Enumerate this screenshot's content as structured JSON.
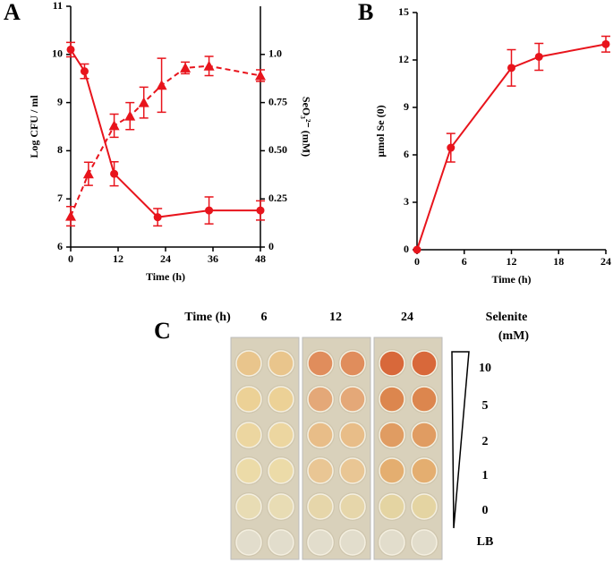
{
  "chart_data": [
    {
      "type": "line",
      "panel": "A",
      "xlabel": "Time (h)",
      "ylabel": "Log CFU / ml",
      "y2label": "SeO₃²⁻ (mM)",
      "xlim": [
        0,
        48
      ],
      "xticks": [
        0,
        12,
        24,
        36,
        48
      ],
      "ylim": [
        6,
        11
      ],
      "yticks": [
        6,
        7,
        8,
        9,
        10,
        11
      ],
      "y2lim": [
        0,
        1.25
      ],
      "y2ticks": [
        0,
        0.25,
        {
          "value": 0.5,
          "label": "0.50"
        },
        0.75,
        {
          "value": 1,
          "label": "1.0"
        }
      ],
      "series": [
        {
          "color": "#e8141c",
          "marker": "circle",
          "dashed": false,
          "axis": "y",
          "x": [
            0,
            3.5,
            11,
            22,
            35,
            48
          ],
          "values": [
            10.1,
            9.65,
            7.52,
            6.62,
            6.76,
            6.76
          ],
          "errors": [
            0.15,
            0.15,
            0.25,
            0.18,
            0.28,
            0.2
          ]
        },
        {
          "color": "#e8141c",
          "marker": "triangle",
          "dashed": true,
          "axis": "y2",
          "x": [
            0,
            4.5,
            11,
            15,
            18.5,
            23,
            29,
            35,
            48
          ],
          "values": [
            0.16,
            0.38,
            0.63,
            0.68,
            0.75,
            0.84,
            0.93,
            0.94,
            0.89
          ],
          "errors": [
            0.05,
            0.06,
            0.06,
            0.07,
            0.08,
            0.14,
            0.03,
            0.05,
            0.03
          ]
        }
      ]
    },
    {
      "type": "line",
      "panel": "B",
      "xlabel": "Time (h)",
      "ylabel": "µmol Se (0)",
      "xlim": [
        0,
        24
      ],
      "xticks": [
        0,
        6,
        12,
        18,
        24
      ],
      "ylim": [
        0,
        15
      ],
      "yticks": [
        0,
        3,
        6,
        9,
        12,
        15
      ],
      "series": [
        {
          "color": "#e8141c",
          "marker": "circle",
          "dashed": false,
          "axis": "y",
          "x": [
            0,
            4.3,
            12,
            15.5,
            24
          ],
          "values": [
            0,
            6.45,
            11.5,
            12.2,
            13
          ],
          "errors": [
            0,
            0.9,
            1.15,
            0.85,
            0.5
          ]
        }
      ]
    }
  ],
  "panel_c": {
    "panel": "C",
    "time_label": "Time (h)",
    "times": [
      "6",
      "12",
      "24"
    ],
    "selenite_label": "Selenite",
    "unit_label": "(mM)",
    "rows": [
      "10",
      "5",
      "2",
      "1",
      "0",
      "LB"
    ]
  }
}
